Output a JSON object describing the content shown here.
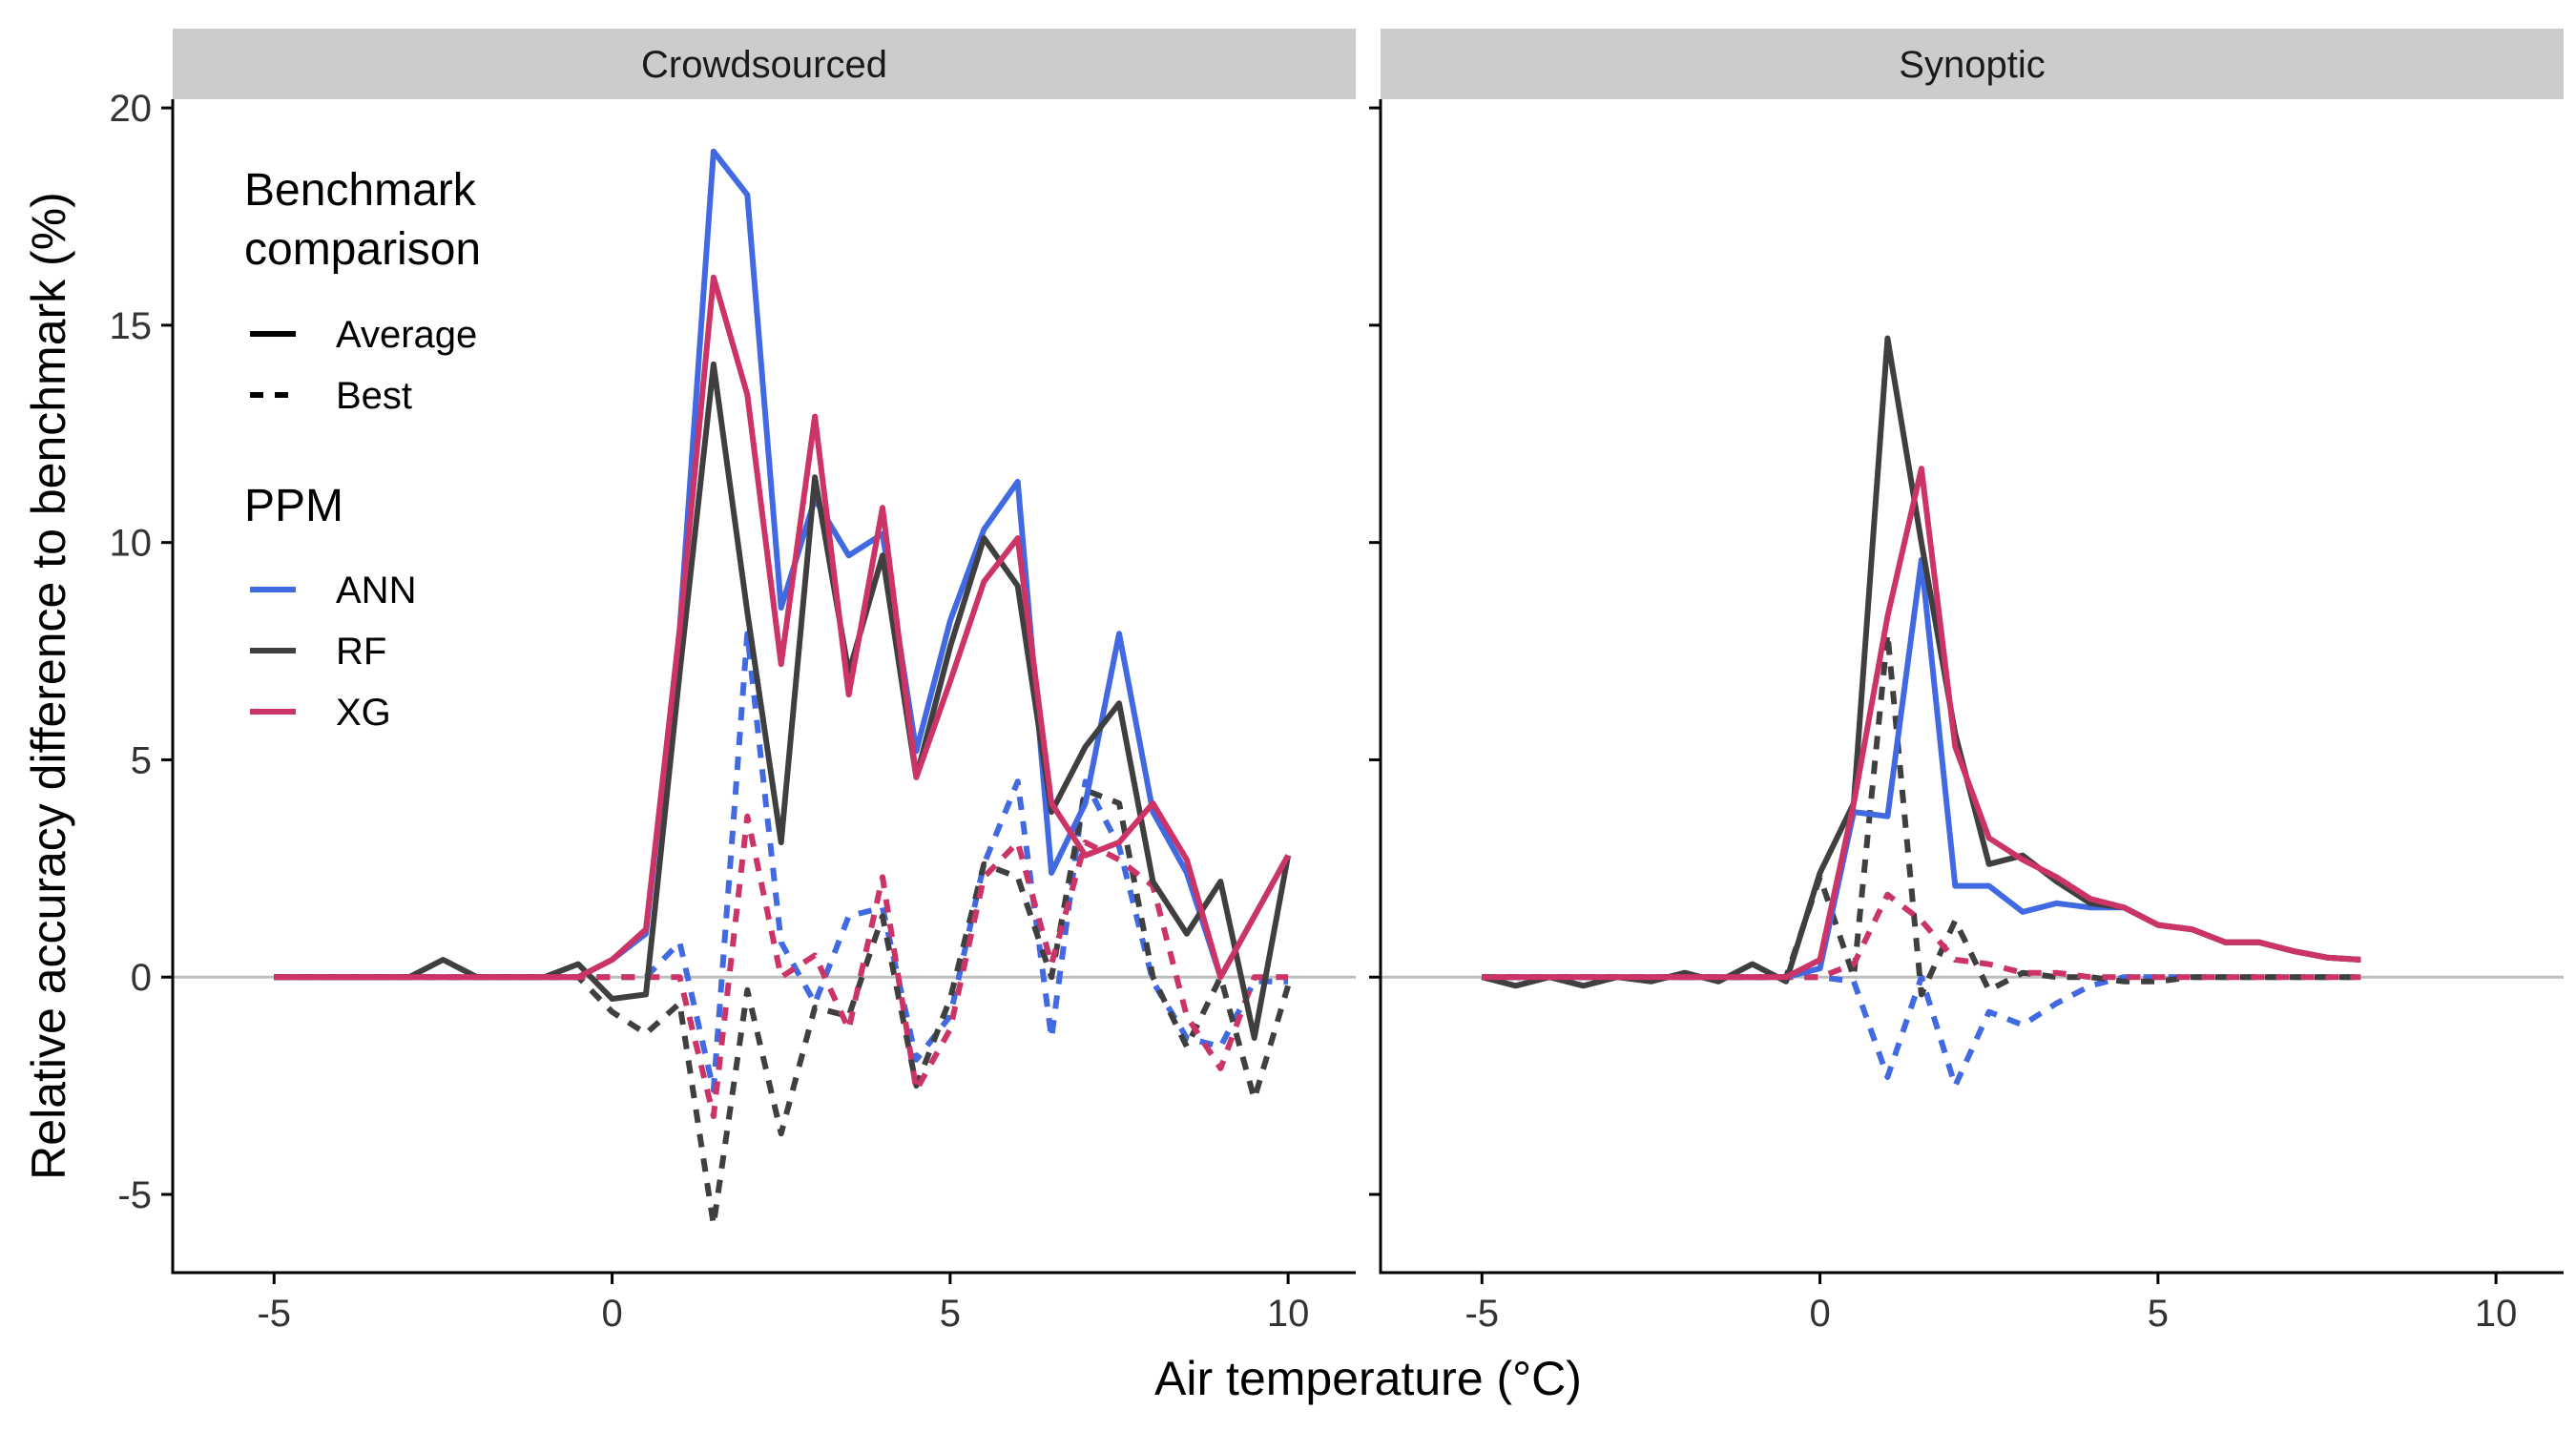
{
  "colors": {
    "ANN": "#4169E1",
    "RF": "#3f3f3f",
    "XG": "#CC3366",
    "strip_background": "#cccccc",
    "zero_line": "#bebebe",
    "axis": "#000000"
  },
  "chart_data": {
    "type": "line",
    "facets": [
      "Crowdsourced",
      "Synoptic"
    ],
    "xlabel": "Air temperature (°C)",
    "ylabel": "Relative accuracy difference to benchmark (%)",
    "xlim": [
      -6.5,
      11.0
    ],
    "ylim": [
      -6.8,
      20.2
    ],
    "x_ticks": [
      -5,
      0,
      5,
      10
    ],
    "y_ticks": [
      -5,
      0,
      5,
      10,
      15,
      20
    ],
    "reference_line_y": 0,
    "grid": false,
    "legend": {
      "position": "top-left inside first panel",
      "linetype_title_lines": [
        "Benchmark",
        "comparison"
      ],
      "linetype_items": [
        {
          "label": "Average",
          "dash": "solid"
        },
        {
          "label": "Best",
          "dash": "dashed"
        }
      ],
      "color_title": "PPM",
      "color_items": [
        "ANN",
        "RF",
        "XG"
      ]
    },
    "panels": [
      {
        "facet": "Crowdsourced",
        "series": [
          {
            "ppm": "ANN",
            "comparison": "Average",
            "x": [
              -5,
              -4.5,
              -4,
              -3.5,
              -3,
              -2.5,
              -2,
              -1.5,
              -1,
              -0.5,
              0,
              0.5,
              1,
              1.5,
              2,
              2.5,
              3,
              3.5,
              4,
              4.5,
              5,
              5.5,
              6,
              6.5,
              7,
              7.5,
              8,
              8.5,
              9,
              9.5,
              10
            ],
            "y": [
              0,
              0,
              0,
              0,
              0,
              0,
              0,
              0,
              0,
              0,
              0.4,
              1.0,
              8.0,
              19.0,
              18.0,
              8.5,
              11.0,
              9.7,
              10.2,
              5.2,
              8.2,
              10.3,
              11.4,
              2.4,
              4.0,
              7.9,
              3.8,
              2.4,
              0,
              1.4,
              2.8
            ]
          },
          {
            "ppm": "RF",
            "comparison": "Average",
            "x": [
              -5,
              -4.5,
              -4,
              -3.5,
              -3,
              -2.5,
              -2,
              -1.5,
              -1,
              -0.5,
              0,
              0.5,
              1,
              1.5,
              2,
              2.5,
              3,
              3.5,
              4,
              4.5,
              5,
              5.5,
              6,
              6.5,
              7,
              7.5,
              8,
              8.5,
              9,
              9.5,
              10
            ],
            "y": [
              0,
              0,
              0,
              0,
              0,
              0.4,
              0,
              0,
              0,
              0.3,
              -0.5,
              -0.4,
              7.0,
              14.1,
              8.4,
              3.1,
              11.5,
              7.0,
              9.7,
              4.6,
              7.6,
              10.1,
              9.0,
              3.8,
              5.3,
              6.3,
              2.2,
              1.0,
              2.2,
              -1.4,
              2.8
            ]
          },
          {
            "ppm": "XG",
            "comparison": "Average",
            "x": [
              -5,
              -4.5,
              -4,
              -3.5,
              -3,
              -2.5,
              -2,
              -1.5,
              -1,
              -0.5,
              0,
              0.5,
              1,
              1.5,
              2,
              2.5,
              3,
              3.5,
              4,
              4.5,
              5,
              5.5,
              6,
              6.5,
              7,
              7.5,
              8,
              8.5,
              9,
              9.5,
              10
            ],
            "y": [
              0,
              0,
              0,
              0,
              0,
              0,
              0,
              0,
              0,
              0,
              0.4,
              1.1,
              8.0,
              16.1,
              13.4,
              7.2,
              12.9,
              6.5,
              10.8,
              4.6,
              6.8,
              9.1,
              10.1,
              4.0,
              2.8,
              3.1,
              4.0,
              2.7,
              0,
              1.4,
              2.8
            ]
          },
          {
            "ppm": "ANN",
            "comparison": "Best",
            "x": [
              -5,
              -4.5,
              -4,
              -3.5,
              -3,
              -2.5,
              -2,
              -1.5,
              -1,
              -0.5,
              0,
              0.5,
              1,
              1.5,
              2,
              2.5,
              3,
              3.5,
              4,
              4.5,
              5,
              5.5,
              6,
              6.5,
              7,
              7.5,
              8,
              8.5,
              9,
              9.5,
              10
            ],
            "y": [
              0,
              0,
              0,
              0,
              0,
              0,
              0,
              0,
              0,
              0,
              0,
              0,
              0.8,
              -2.6,
              7.9,
              0.8,
              -0.6,
              1.4,
              1.6,
              -1.9,
              -0.9,
              2.6,
              4.5,
              -1.4,
              4.5,
              3.0,
              -0.1,
              -1.4,
              -1.6,
              -0.1,
              -0.1
            ]
          },
          {
            "ppm": "RF",
            "comparison": "Best",
            "x": [
              -5,
              -4.5,
              -4,
              -3.5,
              -3,
              -2.5,
              -2,
              -1.5,
              -1,
              -0.5,
              0,
              0.5,
              1,
              1.5,
              2,
              2.5,
              3,
              3.5,
              4,
              4.5,
              5,
              5.5,
              6,
              6.5,
              7,
              7.5,
              8,
              8.5,
              9,
              9.5,
              10
            ],
            "y": [
              0,
              0,
              0,
              0,
              0,
              0,
              0,
              0,
              0,
              0,
              -0.8,
              -1.3,
              -0.6,
              -5.7,
              -0.3,
              -3.6,
              -0.7,
              -0.9,
              1.4,
              -2.5,
              -0.5,
              2.6,
              2.3,
              0,
              4.3,
              4.0,
              0,
              -1.6,
              0,
              -2.8,
              -0.2
            ]
          },
          {
            "ppm": "XG",
            "comparison": "Best",
            "x": [
              -5,
              -4.5,
              -4,
              -3.5,
              -3,
              -2.5,
              -2,
              -1.5,
              -1,
              -0.5,
              0,
              0.5,
              1,
              1.5,
              2,
              2.5,
              3,
              3.5,
              4,
              4.5,
              5,
              5.5,
              6,
              6.5,
              7,
              7.5,
              8,
              8.5,
              9,
              9.5,
              10
            ],
            "y": [
              0,
              0,
              0,
              0,
              0,
              0,
              0,
              0,
              0,
              0,
              0,
              0,
              0,
              -3.2,
              3.7,
              0,
              0.5,
              -1.2,
              2.3,
              -2.6,
              -1.2,
              2.3,
              3.1,
              0.3,
              3.1,
              2.7,
              2.1,
              -0.9,
              -2.1,
              0,
              0
            ]
          }
        ]
      },
      {
        "facet": "Synoptic",
        "series": [
          {
            "ppm": "ANN",
            "comparison": "Average",
            "x": [
              -5,
              -4.5,
              -4,
              -3.5,
              -3,
              -2.5,
              -2,
              -1.5,
              -1,
              -0.5,
              0,
              0.5,
              1,
              1.5,
              2,
              2.5,
              3,
              3.5,
              4,
              4.5,
              5,
              5.5,
              6,
              6.5,
              7,
              7.5,
              8
            ],
            "y": [
              0,
              0,
              0,
              0,
              0,
              0,
              0,
              0,
              0,
              0,
              0.2,
              3.8,
              3.7,
              9.6,
              2.1,
              2.1,
              1.5,
              1.7,
              1.6,
              1.6,
              1.2,
              1.1,
              0.8,
              0.8,
              0.6,
              0.45,
              0.4
            ]
          },
          {
            "ppm": "RF",
            "comparison": "Average",
            "x": [
              -5,
              -4.5,
              -4,
              -3.5,
              -3,
              -2.5,
              -2,
              -1.5,
              -1,
              -0.5,
              0,
              0.5,
              1,
              1.5,
              2,
              2.5,
              3,
              3.5,
              4,
              4.5,
              5,
              5.5,
              6,
              6.5,
              7,
              7.5,
              8
            ],
            "y": [
              0,
              -0.2,
              0,
              -0.2,
              0,
              -0.1,
              0.1,
              -0.1,
              0.3,
              -0.1,
              2.4,
              4.0,
              14.7,
              10.0,
              5.6,
              2.6,
              2.8,
              2.2,
              1.7,
              1.6,
              1.2,
              1.1,
              0.8,
              0.8,
              0.6,
              0.45,
              0.4
            ]
          },
          {
            "ppm": "XG",
            "comparison": "Average",
            "x": [
              -5,
              -4.5,
              -4,
              -3.5,
              -3,
              -2.5,
              -2,
              -1.5,
              -1,
              -0.5,
              0,
              0.5,
              1,
              1.5,
              2,
              2.5,
              3,
              3.5,
              4,
              4.5,
              5,
              5.5,
              6,
              6.5,
              7,
              7.5,
              8
            ],
            "y": [
              0,
              0,
              0,
              0,
              0,
              0,
              0,
              0,
              0,
              0,
              0.4,
              4.0,
              8.3,
              11.7,
              5.3,
              3.2,
              2.7,
              2.3,
              1.8,
              1.6,
              1.2,
              1.1,
              0.8,
              0.8,
              0.6,
              0.45,
              0.4
            ]
          },
          {
            "ppm": "ANN",
            "comparison": "Best",
            "x": [
              -5,
              -4.5,
              -4,
              -3.5,
              -3,
              -2.5,
              -2,
              -1.5,
              -1,
              -0.5,
              0,
              0.5,
              1,
              1.5,
              2,
              2.5,
              3,
              3.5,
              4,
              4.5,
              5,
              5.5,
              6,
              6.5,
              7,
              7.5,
              8
            ],
            "y": [
              0,
              0,
              0,
              0,
              0,
              0,
              0,
              0,
              0,
              0,
              0,
              -0.1,
              -2.3,
              0,
              -2.5,
              -0.8,
              -1.1,
              -0.6,
              -0.2,
              0,
              0,
              0,
              0,
              0,
              0,
              0,
              0
            ]
          },
          {
            "ppm": "RF",
            "comparison": "Best",
            "x": [
              -5,
              -4.5,
              -4,
              -3.5,
              -3,
              -2.5,
              -2,
              -1.5,
              -1,
              -0.5,
              0,
              0.5,
              1,
              1.5,
              2,
              2.5,
              3,
              3.5,
              4,
              4.5,
              5,
              5.5,
              6,
              6.5,
              7,
              7.5,
              8
            ],
            "y": [
              0,
              0,
              0,
              0,
              0,
              0,
              0,
              0,
              0,
              0,
              2.3,
              0,
              7.9,
              -0.4,
              1.3,
              -0.3,
              0.1,
              0,
              0,
              -0.1,
              -0.1,
              0,
              0,
              0,
              0,
              0,
              0
            ]
          },
          {
            "ppm": "XG",
            "comparison": "Best",
            "x": [
              -5,
              -4.5,
              -4,
              -3.5,
              -3,
              -2.5,
              -2,
              -1.5,
              -1,
              -0.5,
              0,
              0.5,
              1,
              1.5,
              2,
              2.5,
              3,
              3.5,
              4,
              4.5,
              5,
              5.5,
              6,
              6.5,
              7,
              7.5,
              8
            ],
            "y": [
              0,
              0,
              0,
              0,
              0,
              0,
              0,
              0,
              0,
              0,
              0,
              0.3,
              1.9,
              1.3,
              0.4,
              0.3,
              0.1,
              0.1,
              0,
              0,
              0,
              0,
              0,
              0,
              0,
              0,
              0
            ]
          }
        ]
      }
    ]
  }
}
